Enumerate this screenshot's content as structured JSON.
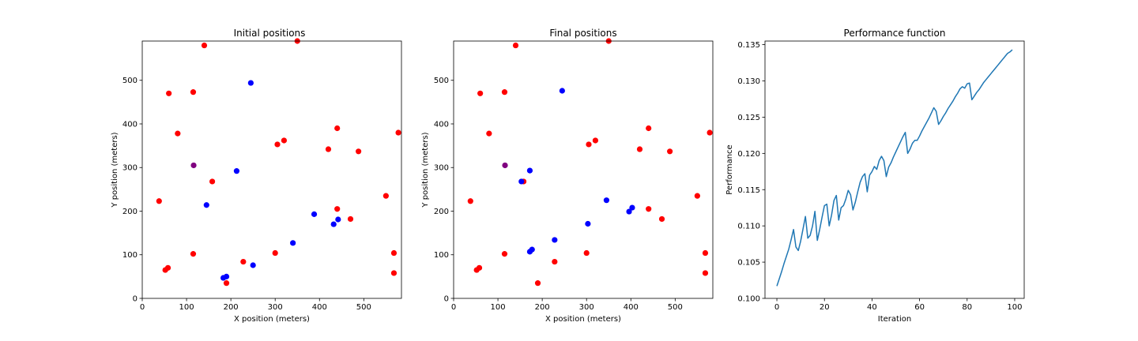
{
  "chart_data": [
    {
      "type": "scatter",
      "title": "Initial positions",
      "xlabel": "X position (meters)",
      "ylabel": "Y position (meters)",
      "xlim": [
        0,
        585
      ],
      "ylim": [
        0,
        590
      ],
      "xticks": [
        0,
        100,
        200,
        300,
        400,
        500
      ],
      "yticks": [
        0,
        100,
        200,
        300,
        400,
        500
      ],
      "grid": false,
      "series": [
        {
          "color": "#ff0000",
          "points": [
            [
              140,
              580
            ],
            [
              350,
              590
            ],
            [
              60,
              470
            ],
            [
              115,
              473
            ],
            [
              80,
              378
            ],
            [
              440,
              390
            ],
            [
              578,
              380
            ],
            [
              320,
              362
            ],
            [
              305,
              353
            ],
            [
              420,
              342
            ],
            [
              488,
              337
            ],
            [
              158,
              268
            ],
            [
              38,
              223
            ],
            [
              550,
              235
            ],
            [
              440,
              205
            ],
            [
              470,
              182
            ],
            [
              115,
              102
            ],
            [
              300,
              104
            ],
            [
              568,
              104
            ],
            [
              228,
              84
            ],
            [
              58,
              70
            ],
            [
              52,
              65
            ],
            [
              568,
              58
            ],
            [
              190,
              35
            ]
          ]
        },
        {
          "color": "#0000ff",
          "points": [
            [
              245,
              494
            ],
            [
              213,
              292
            ],
            [
              145,
              214
            ],
            [
              388,
              193
            ],
            [
              442,
              181
            ],
            [
              432,
              170
            ],
            [
              340,
              127
            ],
            [
              250,
              76
            ],
            [
              190,
              50
            ],
            [
              183,
              47
            ]
          ]
        },
        {
          "color": "#800080",
          "points": [
            [
              116,
              305
            ]
          ]
        }
      ]
    },
    {
      "type": "scatter",
      "title": "Final positions",
      "xlabel": "X position (meters)",
      "ylabel": "Y position (meters)",
      "xlim": [
        0,
        585
      ],
      "ylim": [
        0,
        590
      ],
      "xticks": [
        0,
        100,
        200,
        300,
        400,
        500
      ],
      "yticks": [
        0,
        100,
        200,
        300,
        400,
        500
      ],
      "grid": false,
      "series": [
        {
          "color": "#ff0000",
          "points": [
            [
              140,
              580
            ],
            [
              350,
              590
            ],
            [
              60,
              470
            ],
            [
              115,
              473
            ],
            [
              80,
              378
            ],
            [
              440,
              390
            ],
            [
              578,
              380
            ],
            [
              320,
              362
            ],
            [
              305,
              353
            ],
            [
              420,
              342
            ],
            [
              488,
              337
            ],
            [
              158,
              268
            ],
            [
              38,
              223
            ],
            [
              550,
              235
            ],
            [
              440,
              205
            ],
            [
              470,
              182
            ],
            [
              115,
              102
            ],
            [
              300,
              104
            ],
            [
              568,
              104
            ],
            [
              228,
              84
            ],
            [
              58,
              70
            ],
            [
              52,
              65
            ],
            [
              568,
              58
            ],
            [
              190,
              35
            ]
          ]
        },
        {
          "color": "#0000ff",
          "points": [
            [
              245,
              476
            ],
            [
              172,
              293
            ],
            [
              153,
              268
            ],
            [
              345,
              225
            ],
            [
              403,
              208
            ],
            [
              396,
              199
            ],
            [
              303,
              171
            ],
            [
              228,
              134
            ],
            [
              177,
              112
            ],
            [
              172,
              107
            ]
          ]
        },
        {
          "color": "#800080",
          "points": [
            [
              116,
              305
            ]
          ]
        }
      ]
    },
    {
      "type": "line",
      "title": "Performance function",
      "xlabel": "Iteration",
      "ylabel": "Performance",
      "xlim": [
        -5,
        104
      ],
      "ylim": [
        0.1,
        0.1355
      ],
      "xticks": [
        0,
        20,
        40,
        60,
        80,
        100
      ],
      "yticks": [
        0.1,
        0.105,
        0.11,
        0.115,
        0.12,
        0.125,
        0.13,
        0.135
      ],
      "ytick_labels": [
        "0.100",
        "0.105",
        "0.110",
        "0.115",
        "0.120",
        "0.125",
        "0.130",
        "0.135"
      ],
      "grid": false,
      "series": [
        {
          "color": "#1f77b4",
          "x": [
            0,
            1,
            2,
            3,
            4,
            5,
            6,
            7,
            8,
            9,
            10,
            11,
            12,
            13,
            14,
            15,
            16,
            17,
            18,
            19,
            20,
            21,
            22,
            23,
            24,
            25,
            26,
            27,
            28,
            29,
            30,
            31,
            32,
            33,
            34,
            35,
            36,
            37,
            38,
            39,
            40,
            41,
            42,
            43,
            44,
            45,
            46,
            47,
            48,
            49,
            50,
            51,
            52,
            53,
            54,
            55,
            56,
            57,
            58,
            59,
            60,
            61,
            62,
            63,
            64,
            65,
            66,
            67,
            68,
            69,
            70,
            71,
            72,
            73,
            74,
            75,
            76,
            77,
            78,
            79,
            80,
            81,
            82,
            83,
            84,
            85,
            86,
            87,
            88,
            89,
            90,
            91,
            92,
            93,
            94,
            95,
            96,
            97,
            98,
            99
          ],
          "values": [
            0.1017,
            0.1027,
            0.1037,
            0.1048,
            0.1058,
            0.1068,
            0.1081,
            0.1095,
            0.1071,
            0.1066,
            0.1079,
            0.1096,
            0.1113,
            0.1083,
            0.1087,
            0.11,
            0.112,
            0.108,
            0.1095,
            0.1112,
            0.1128,
            0.113,
            0.11,
            0.1115,
            0.1135,
            0.1142,
            0.1108,
            0.1125,
            0.1128,
            0.1137,
            0.1149,
            0.1143,
            0.1122,
            0.1133,
            0.1147,
            0.116,
            0.1168,
            0.1172,
            0.1147,
            0.117,
            0.1175,
            0.1182,
            0.1178,
            0.119,
            0.1196,
            0.119,
            0.1168,
            0.1181,
            0.1187,
            0.1195,
            0.1202,
            0.1209,
            0.1216,
            0.1223,
            0.1229,
            0.12,
            0.1206,
            0.1214,
            0.1218,
            0.1218,
            0.1224,
            0.1231,
            0.1237,
            0.1243,
            0.1249,
            0.1256,
            0.1263,
            0.1258,
            0.124,
            0.1245,
            0.1251,
            0.1256,
            0.1262,
            0.1267,
            0.1272,
            0.1278,
            0.1283,
            0.1289,
            0.1292,
            0.129,
            0.1296,
            0.1297,
            0.1274,
            0.1279,
            0.1284,
            0.1288,
            0.1293,
            0.1298,
            0.1302,
            0.1306,
            0.131,
            0.1314,
            0.1318,
            0.1322,
            0.1326,
            0.133,
            0.1334,
            0.1338,
            0.134,
            0.1343
          ]
        }
      ]
    }
  ]
}
